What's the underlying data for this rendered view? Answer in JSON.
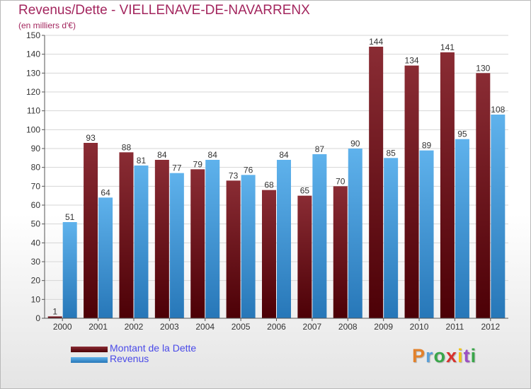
{
  "title": "Revenus/Dette - VIELLENAVE-DE-NAVARRENX",
  "subtitle": "(en milliers d'€)",
  "logo_text": "Proxiti",
  "colors": {
    "dette": "#6b1018",
    "revenus": "#3f9be0",
    "title": "#a3265e",
    "legend_text": "#4a4ae8"
  },
  "chart_data": {
    "type": "bar",
    "title": "Revenus/Dette - VIELLENAVE-DE-NAVARRENX",
    "ylabel": "(en milliers d'€)",
    "xlabel": "",
    "ylim": [
      0,
      150
    ],
    "yticks": [
      0,
      10,
      20,
      30,
      40,
      50,
      60,
      70,
      80,
      90,
      100,
      110,
      120,
      130,
      140,
      150
    ],
    "categories": [
      "2000",
      "2001",
      "2002",
      "2003",
      "2004",
      "2005",
      "2006",
      "2007",
      "2008",
      "2009",
      "2010",
      "2011",
      "2012"
    ],
    "series": [
      {
        "name": "Montant de la Dette",
        "values": [
          1,
          93,
          88,
          84,
          79,
          73,
          68,
          65,
          70,
          144,
          134,
          141,
          130
        ]
      },
      {
        "name": "Revenus",
        "values": [
          51,
          64,
          81,
          77,
          84,
          76,
          84,
          87,
          90,
          85,
          89,
          95,
          108
        ]
      }
    ],
    "legend_position": "bottom-left"
  }
}
